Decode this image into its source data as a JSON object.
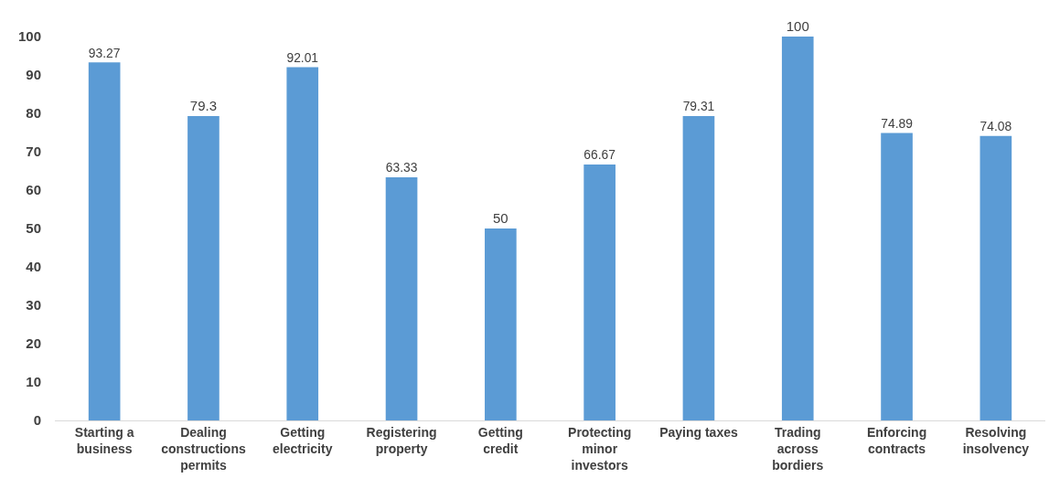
{
  "chart_data": {
    "type": "bar",
    "categories": [
      "Starting a business",
      "Dealing constructions permits",
      "Getting electricity",
      "Registering property",
      "Getting credit",
      "Protecting minor investors",
      "Paying taxes",
      "Trading across bordiers",
      "Enforcing contracts",
      "Resolving insolvency"
    ],
    "values": [
      93.27,
      79.3,
      92.01,
      63.33,
      50,
      66.67,
      79.31,
      100,
      74.89,
      74.08
    ],
    "color": "#5b9bd5",
    "ylim": [
      0,
      100
    ],
    "yticks": [
      0,
      10,
      20,
      30,
      40,
      50,
      60,
      70,
      80,
      90,
      100
    ],
    "grid": false,
    "data_labels": true
  }
}
